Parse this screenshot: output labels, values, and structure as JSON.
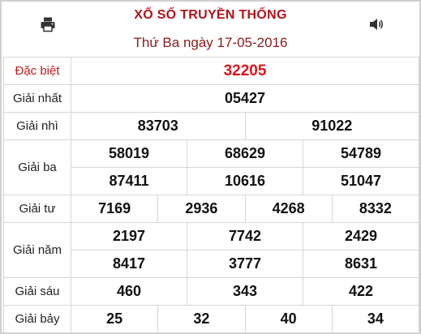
{
  "header": {
    "title": "XỔ SỐ TRUYỀN THỐNG",
    "date": "Thứ Ba ngày 17-05-2016",
    "print_icon": "printer-icon",
    "sound_icon": "speaker-icon"
  },
  "prizes": {
    "special": {
      "label": "Đặc biệt",
      "numbers": [
        "32205"
      ]
    },
    "first": {
      "label": "Giải nhất",
      "numbers": [
        "05427"
      ]
    },
    "second": {
      "label": "Giải nhì",
      "numbers": [
        "83703",
        "91022"
      ]
    },
    "third": {
      "label": "Giải ba",
      "numbers": [
        "58019",
        "68629",
        "54789",
        "87411",
        "10616",
        "51047"
      ]
    },
    "fourth": {
      "label": "Giải tư",
      "numbers": [
        "7169",
        "2936",
        "4268",
        "8332"
      ]
    },
    "fifth": {
      "label": "Giải năm",
      "numbers": [
        "2197",
        "7742",
        "2429",
        "8417",
        "3777",
        "8631"
      ]
    },
    "sixth": {
      "label": "Giải sáu",
      "numbers": [
        "460",
        "343",
        "422"
      ]
    },
    "seventh": {
      "label": "Giải bảy",
      "numbers": [
        "25",
        "32",
        "40",
        "34"
      ]
    }
  },
  "colors": {
    "title": "#b5121b",
    "special": "#e0151c",
    "border": "#d6d6d6"
  }
}
